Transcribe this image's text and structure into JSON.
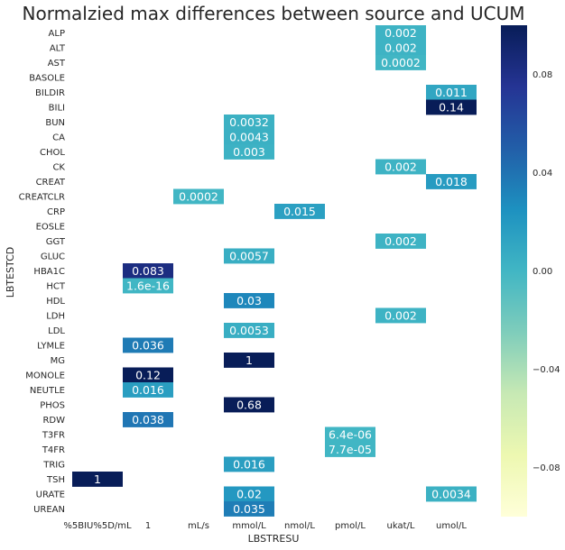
{
  "chart_data": {
    "type": "heatmap",
    "title": "Normalzied max differences between source and UCUM",
    "xlabel": "LBSTRESU",
    "ylabel": "LBTESTCD",
    "x_categories": [
      "%5BIU%5D/mL",
      "1",
      "mL/s",
      "mmol/L",
      "nmol/L",
      "pmol/L",
      "ukat/L",
      "umol/L"
    ],
    "y_categories": [
      "ALP",
      "ALT",
      "AST",
      "BASOLE",
      "BILDIR",
      "BILI",
      "BUN",
      "CA",
      "CHOL",
      "CK",
      "CREAT",
      "CREATCLR",
      "CRP",
      "EOSLE",
      "GGT",
      "GLUC",
      "HBA1C",
      "HCT",
      "HDL",
      "LDH",
      "LDL",
      "LYMLE",
      "MG",
      "MONOLE",
      "NEUTLE",
      "PHOS",
      "RDW",
      "T3FR",
      "T4FR",
      "TRIG",
      "TSH",
      "URATE",
      "UREAN"
    ],
    "cells": [
      {
        "y": "ALP",
        "x": "ukat/L",
        "value": 0.002,
        "label": "0.002"
      },
      {
        "y": "ALT",
        "x": "ukat/L",
        "value": 0.002,
        "label": "0.002"
      },
      {
        "y": "AST",
        "x": "ukat/L",
        "value": 0.0002,
        "label": "0.0002"
      },
      {
        "y": "BILDIR",
        "x": "umol/L",
        "value": 0.011,
        "label": "0.011"
      },
      {
        "y": "BILI",
        "x": "umol/L",
        "value": 0.14,
        "label": "0.14"
      },
      {
        "y": "BUN",
        "x": "mmol/L",
        "value": 0.0032,
        "label": "0.0032"
      },
      {
        "y": "CA",
        "x": "mmol/L",
        "value": 0.0043,
        "label": "0.0043"
      },
      {
        "y": "CHOL",
        "x": "mmol/L",
        "value": 0.003,
        "label": "0.003"
      },
      {
        "y": "CK",
        "x": "ukat/L",
        "value": 0.002,
        "label": "0.002"
      },
      {
        "y": "CREAT",
        "x": "umol/L",
        "value": 0.018,
        "label": "0.018"
      },
      {
        "y": "CREATCLR",
        "x": "mL/s",
        "value": 0.0002,
        "label": "0.0002"
      },
      {
        "y": "CRP",
        "x": "nmol/L",
        "value": 0.015,
        "label": "0.015"
      },
      {
        "y": "GGT",
        "x": "ukat/L",
        "value": 0.002,
        "label": "0.002"
      },
      {
        "y": "GLUC",
        "x": "mmol/L",
        "value": 0.0057,
        "label": "0.0057"
      },
      {
        "y": "HBA1C",
        "x": "1",
        "value": 0.083,
        "label": "0.083"
      },
      {
        "y": "HCT",
        "x": "1",
        "value": 1.6e-16,
        "label": "1.6e-16"
      },
      {
        "y": "HDL",
        "x": "mmol/L",
        "value": 0.03,
        "label": "0.03"
      },
      {
        "y": "LDH",
        "x": "ukat/L",
        "value": 0.002,
        "label": "0.002"
      },
      {
        "y": "LDL",
        "x": "mmol/L",
        "value": 0.0053,
        "label": "0.0053"
      },
      {
        "y": "LYMLE",
        "x": "1",
        "value": 0.036,
        "label": "0.036"
      },
      {
        "y": "MG",
        "x": "mmol/L",
        "value": 1,
        "label": "1"
      },
      {
        "y": "MONOLE",
        "x": "1",
        "value": 0.12,
        "label": "0.12"
      },
      {
        "y": "NEUTLE",
        "x": "1",
        "value": 0.016,
        "label": "0.016"
      },
      {
        "y": "PHOS",
        "x": "mmol/L",
        "value": 0.68,
        "label": "0.68"
      },
      {
        "y": "RDW",
        "x": "1",
        "value": 0.038,
        "label": "0.038"
      },
      {
        "y": "T3FR",
        "x": "pmol/L",
        "value": 6.4e-06,
        "label": "6.4e-06"
      },
      {
        "y": "T4FR",
        "x": "pmol/L",
        "value": 7.7e-05,
        "label": "7.7e-05"
      },
      {
        "y": "TRIG",
        "x": "mmol/L",
        "value": 0.016,
        "label": "0.016"
      },
      {
        "y": "TSH",
        "x": "%5BIU%5D/mL",
        "value": 1,
        "label": "1"
      },
      {
        "y": "URATE",
        "x": "mmol/L",
        "value": 0.02,
        "label": "0.02"
      },
      {
        "y": "URATE",
        "x": "umol/L",
        "value": 0.0034,
        "label": "0.0034"
      },
      {
        "y": "UREAN",
        "x": "mmol/L",
        "value": 0.035,
        "label": "0.035"
      }
    ],
    "colorbar": {
      "colormap": "YlGnBu",
      "range": [
        -0.1,
        0.1
      ],
      "ticks": [
        0.08,
        0.04,
        0.0,
        -0.04,
        -0.08
      ],
      "tick_labels": [
        "0.08",
        "0.04",
        "0.00",
        "−0.04",
        "−0.08"
      ]
    },
    "grid": false,
    "colorbar_placement": "right"
  }
}
